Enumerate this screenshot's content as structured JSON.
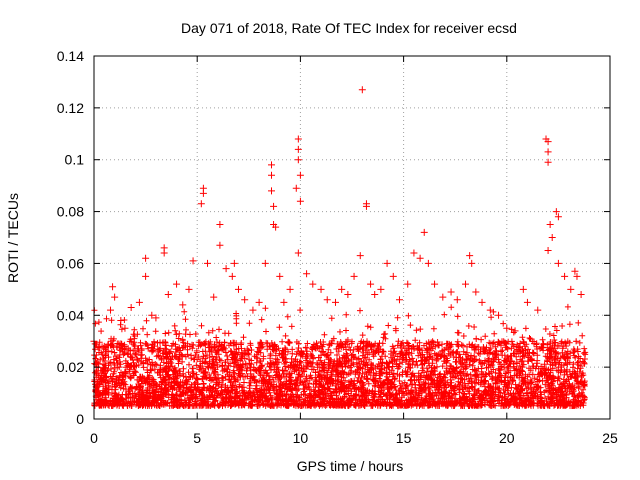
{
  "chart_data": {
    "type": "scatter",
    "title": "Day 071 of 2018, Rate Of TEC Index for receiver ecsd",
    "xlabel": "GPS time / hours",
    "ylabel": "ROTI / TECUs",
    "xlim": [
      0,
      25
    ],
    "ylim": [
      0,
      0.14
    ],
    "xticks": [
      "0",
      "5",
      "10",
      "15",
      "20",
      "25"
    ],
    "yticks": [
      "0",
      "0.02",
      "0.04",
      "0.06",
      "0.08",
      "0.1",
      "0.12",
      "0.14"
    ],
    "grid": true,
    "marker": "+",
    "color": "#ff0000",
    "background_band": {
      "description": "dense cloud of thousands of points",
      "x_range": [
        0,
        23.8
      ],
      "typical_y_range": [
        0.005,
        0.03
      ]
    },
    "series": [
      {
        "name": "ROTI",
        "points": [
          [
            0.0,
            0.03
          ],
          [
            0.5,
            0.028
          ],
          [
            0.8,
            0.042
          ],
          [
            0.9,
            0.051
          ],
          [
            1.0,
            0.047
          ],
          [
            1.3,
            0.038
          ],
          [
            1.5,
            0.035
          ],
          [
            1.8,
            0.043
          ],
          [
            2.2,
            0.045
          ],
          [
            2.5,
            0.062
          ],
          [
            2.5,
            0.055
          ],
          [
            2.8,
            0.04
          ],
          [
            3.0,
            0.039
          ],
          [
            3.4,
            0.066
          ],
          [
            3.4,
            0.064
          ],
          [
            3.6,
            0.048
          ],
          [
            4.0,
            0.052
          ],
          [
            4.3,
            0.044
          ],
          [
            4.6,
            0.05
          ],
          [
            4.8,
            0.061
          ],
          [
            5.2,
            0.083
          ],
          [
            5.3,
            0.089
          ],
          [
            5.3,
            0.087
          ],
          [
            5.5,
            0.06
          ],
          [
            5.8,
            0.047
          ],
          [
            6.1,
            0.075
          ],
          [
            6.1,
            0.067
          ],
          [
            6.4,
            0.058
          ],
          [
            6.7,
            0.055
          ],
          [
            6.8,
            0.06
          ],
          [
            7.0,
            0.05
          ],
          [
            7.3,
            0.046
          ],
          [
            7.7,
            0.042
          ],
          [
            8.0,
            0.045
          ],
          [
            8.3,
            0.06
          ],
          [
            8.6,
            0.098
          ],
          [
            8.6,
            0.094
          ],
          [
            8.6,
            0.088
          ],
          [
            8.7,
            0.082
          ],
          [
            8.7,
            0.075
          ],
          [
            8.8,
            0.074
          ],
          [
            9.0,
            0.055
          ],
          [
            9.2,
            0.045
          ],
          [
            9.5,
            0.05
          ],
          [
            9.8,
            0.089
          ],
          [
            9.9,
            0.108
          ],
          [
            9.9,
            0.104
          ],
          [
            9.9,
            0.1
          ],
          [
            10.0,
            0.094
          ],
          [
            10.0,
            0.084
          ],
          [
            9.9,
            0.064
          ],
          [
            10.3,
            0.056
          ],
          [
            10.6,
            0.052
          ],
          [
            11.0,
            0.05
          ],
          [
            11.3,
            0.046
          ],
          [
            11.7,
            0.045
          ],
          [
            12.0,
            0.05
          ],
          [
            12.3,
            0.048
          ],
          [
            12.6,
            0.055
          ],
          [
            12.9,
            0.063
          ],
          [
            13.0,
            0.127
          ],
          [
            13.2,
            0.083
          ],
          [
            13.2,
            0.082
          ],
          [
            13.4,
            0.052
          ],
          [
            13.6,
            0.048
          ],
          [
            13.9,
            0.05
          ],
          [
            14.2,
            0.06
          ],
          [
            14.5,
            0.055
          ],
          [
            14.8,
            0.046
          ],
          [
            15.2,
            0.052
          ],
          [
            15.5,
            0.064
          ],
          [
            15.8,
            0.062
          ],
          [
            16.0,
            0.072
          ],
          [
            16.2,
            0.06
          ],
          [
            16.5,
            0.052
          ],
          [
            16.9,
            0.047
          ],
          [
            17.3,
            0.049
          ],
          [
            17.6,
            0.046
          ],
          [
            18.0,
            0.052
          ],
          [
            18.2,
            0.063
          ],
          [
            18.3,
            0.06
          ],
          [
            18.5,
            0.049
          ],
          [
            18.8,
            0.045
          ],
          [
            19.2,
            0.042
          ],
          [
            19.6,
            0.04
          ],
          [
            20.0,
            0.035
          ],
          [
            20.4,
            0.034
          ],
          [
            20.8,
            0.05
          ],
          [
            21.0,
            0.045
          ],
          [
            21.5,
            0.042
          ],
          [
            21.9,
            0.108
          ],
          [
            22.0,
            0.107
          ],
          [
            22.0,
            0.103
          ],
          [
            22.0,
            0.099
          ],
          [
            22.1,
            0.075
          ],
          [
            22.2,
            0.07
          ],
          [
            22.0,
            0.065
          ],
          [
            22.4,
            0.08
          ],
          [
            22.5,
            0.078
          ],
          [
            22.5,
            0.06
          ],
          [
            22.8,
            0.055
          ],
          [
            23.1,
            0.05
          ],
          [
            23.3,
            0.057
          ],
          [
            23.4,
            0.055
          ],
          [
            23.6,
            0.048
          ]
        ]
      }
    ]
  }
}
